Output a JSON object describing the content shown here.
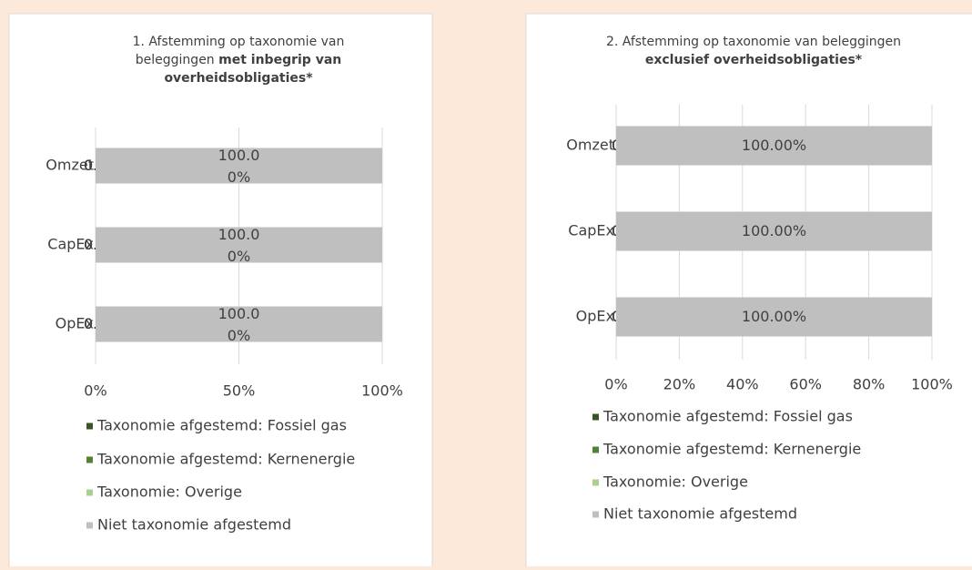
{
  "chart_data": [
    {
      "type": "bar",
      "orientation": "horizontal",
      "stacked": true,
      "title": "1. Afstemming op taxonomie van beleggingen",
      "title_bold": "met inbegrip van overheidsobligaties*",
      "categories": [
        "Omzet",
        "CapEx",
        "OpEx"
      ],
      "series": [
        {
          "name": "Taxonomie afgestemd: Fossiel gas",
          "color": "#375623",
          "values": [
            0,
            0,
            0
          ],
          "value_labels": [
            "0.00%",
            "0.00%",
            "0.00%"
          ]
        },
        {
          "name": "Taxonomie afgestemd: Kernenergie",
          "color": "#548235",
          "values": [
            0,
            0,
            0
          ],
          "value_labels": [
            "0.00%",
            "0.00%",
            "0.00%"
          ]
        },
        {
          "name": "Taxonomie: Overige",
          "color": "#a9d08e",
          "values": [
            0,
            0,
            0
          ],
          "value_labels": [
            "0.00%",
            "0.00%",
            "0.00%"
          ]
        },
        {
          "name": "Niet taxonomie afgestemd",
          "color": "#bfbfbf",
          "values": [
            100,
            100,
            100
          ],
          "value_labels": [
            "100.00%",
            "100.00%",
            "100.00%"
          ]
        }
      ],
      "xlim": [
        0,
        100
      ],
      "xticks": [
        {
          "value": 0,
          "label": "0%"
        },
        {
          "value": 50,
          "label": "50%"
        },
        {
          "value": 100,
          "label": "100%"
        }
      ],
      "grid": true,
      "legend": "bottom"
    },
    {
      "type": "bar",
      "orientation": "horizontal",
      "stacked": true,
      "title": "2. Afstemming op taxonomie van beleggingen",
      "title_bold": "exclusief overheidsobligaties*",
      "categories": [
        "Omzet",
        "CapEx",
        "OpEx"
      ],
      "series": [
        {
          "name": "Taxonomie afgestemd: Fossiel gas",
          "color": "#375623",
          "values": [
            0,
            0,
            0
          ],
          "value_labels": [
            "0.00%",
            "0.00%",
            "0.00%"
          ]
        },
        {
          "name": "Taxonomie afgestemd: Kernenergie",
          "color": "#548235",
          "values": [
            0,
            0,
            0
          ],
          "value_labels": [
            "0.00%",
            "0.00%",
            "0.00%"
          ]
        },
        {
          "name": "Taxonomie: Overige",
          "color": "#a9d08e",
          "values": [
            0,
            0,
            0
          ],
          "value_labels": [
            "0.00%",
            "0.00%",
            "0.00%"
          ]
        },
        {
          "name": "Niet taxonomie afgestemd",
          "color": "#bfbfbf",
          "values": [
            100,
            100,
            100
          ],
          "value_labels": [
            "100.00%",
            "100.00%",
            "100.00%"
          ]
        }
      ],
      "xlim": [
        0,
        100
      ],
      "xticks": [
        {
          "value": 0,
          "label": "0%"
        },
        {
          "value": 20,
          "label": "20%"
        },
        {
          "value": 40,
          "label": "40%"
        },
        {
          "value": 60,
          "label": "60%"
        },
        {
          "value": 80,
          "label": "80%"
        },
        {
          "value": 100,
          "label": "100%"
        }
      ],
      "grid": true,
      "legend": "bottom"
    }
  ]
}
